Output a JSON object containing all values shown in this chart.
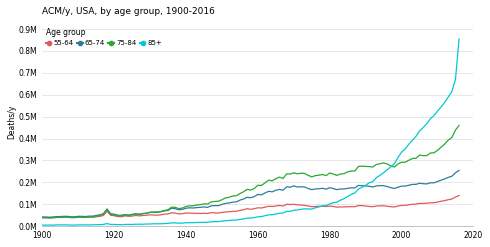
{
  "title": "ACM/y, USA, by age group, 1900-2016",
  "ylabel": "Deaths/y",
  "legend_title": "Age group",
  "legend_entries": [
    "55-64",
    "65-74",
    "75-84",
    "85+"
  ],
  "colors": {
    "55-64": "#e05a5a",
    "65-74": "#2e7d9e",
    "75-84": "#2ca830",
    "85+": "#00c8d4"
  },
  "yticks": [
    0.0,
    0.1,
    0.2,
    0.3,
    0.4,
    0.5,
    0.6,
    0.7,
    0.8,
    0.9
  ],
  "ytick_labels": [
    "0.0M",
    "0.1M",
    "0.2M",
    "0.3M",
    "0.4M",
    "0.5M",
    "0.6M",
    "0.7M",
    "0.8M",
    "0.9M"
  ],
  "xlim": [
    1900,
    2020
  ],
  "ylim": [
    0,
    0.95
  ],
  "data": {
    "years": [
      1900,
      1901,
      1902,
      1903,
      1904,
      1905,
      1906,
      1907,
      1908,
      1909,
      1910,
      1911,
      1912,
      1913,
      1914,
      1915,
      1916,
      1917,
      1918,
      1919,
      1920,
      1921,
      1922,
      1923,
      1924,
      1925,
      1926,
      1927,
      1928,
      1929,
      1930,
      1931,
      1932,
      1933,
      1934,
      1935,
      1936,
      1937,
      1938,
      1939,
      1940,
      1941,
      1942,
      1943,
      1944,
      1945,
      1946,
      1947,
      1948,
      1949,
      1950,
      1951,
      1952,
      1953,
      1954,
      1955,
      1956,
      1957,
      1958,
      1959,
      1960,
      1961,
      1962,
      1963,
      1964,
      1965,
      1966,
      1967,
      1968,
      1969,
      1970,
      1971,
      1972,
      1973,
      1974,
      1975,
      1976,
      1977,
      1978,
      1979,
      1980,
      1981,
      1982,
      1983,
      1984,
      1985,
      1986,
      1987,
      1988,
      1989,
      1990,
      1991,
      1992,
      1993,
      1994,
      1995,
      1996,
      1997,
      1998,
      1999,
      2000,
      2001,
      2002,
      2003,
      2004,
      2005,
      2006,
      2007,
      2008,
      2009,
      2010,
      2011,
      2012,
      2013,
      2014,
      2015,
      2016
    ],
    "55_64": [
      0.04,
      0.04,
      0.039,
      0.04,
      0.041,
      0.041,
      0.042,
      0.042,
      0.04,
      0.04,
      0.042,
      0.042,
      0.041,
      0.042,
      0.041,
      0.043,
      0.045,
      0.049,
      0.068,
      0.05,
      0.048,
      0.044,
      0.043,
      0.047,
      0.045,
      0.046,
      0.049,
      0.047,
      0.049,
      0.05,
      0.052,
      0.051,
      0.05,
      0.052,
      0.055,
      0.056,
      0.061,
      0.06,
      0.056,
      0.057,
      0.06,
      0.06,
      0.059,
      0.059,
      0.058,
      0.059,
      0.058,
      0.062,
      0.061,
      0.06,
      0.063,
      0.065,
      0.066,
      0.068,
      0.068,
      0.072,
      0.075,
      0.08,
      0.077,
      0.08,
      0.084,
      0.083,
      0.087,
      0.091,
      0.09,
      0.092,
      0.095,
      0.092,
      0.1,
      0.099,
      0.1,
      0.097,
      0.097,
      0.095,
      0.092,
      0.089,
      0.09,
      0.091,
      0.091,
      0.09,
      0.092,
      0.09,
      0.087,
      0.088,
      0.088,
      0.089,
      0.089,
      0.089,
      0.094,
      0.094,
      0.092,
      0.09,
      0.089,
      0.092,
      0.093,
      0.093,
      0.091,
      0.089,
      0.088,
      0.092,
      0.095,
      0.095,
      0.098,
      0.1,
      0.101,
      0.104,
      0.104,
      0.105,
      0.107,
      0.107,
      0.11,
      0.114,
      0.117,
      0.121,
      0.124,
      0.133,
      0.14
    ],
    "65_74": [
      0.042,
      0.042,
      0.041,
      0.042,
      0.044,
      0.044,
      0.045,
      0.045,
      0.043,
      0.043,
      0.045,
      0.045,
      0.044,
      0.046,
      0.046,
      0.049,
      0.052,
      0.057,
      0.079,
      0.057,
      0.055,
      0.05,
      0.05,
      0.053,
      0.051,
      0.054,
      0.057,
      0.055,
      0.058,
      0.059,
      0.063,
      0.063,
      0.063,
      0.066,
      0.07,
      0.072,
      0.082,
      0.08,
      0.075,
      0.077,
      0.082,
      0.084,
      0.083,
      0.085,
      0.086,
      0.088,
      0.086,
      0.093,
      0.094,
      0.094,
      0.099,
      0.104,
      0.106,
      0.11,
      0.111,
      0.119,
      0.124,
      0.132,
      0.13,
      0.135,
      0.145,
      0.143,
      0.152,
      0.159,
      0.157,
      0.164,
      0.168,
      0.164,
      0.18,
      0.178,
      0.184,
      0.179,
      0.18,
      0.179,
      0.172,
      0.167,
      0.17,
      0.171,
      0.173,
      0.169,
      0.176,
      0.172,
      0.167,
      0.17,
      0.17,
      0.173,
      0.175,
      0.175,
      0.186,
      0.185,
      0.184,
      0.182,
      0.179,
      0.184,
      0.185,
      0.185,
      0.181,
      0.176,
      0.172,
      0.178,
      0.183,
      0.183,
      0.187,
      0.191,
      0.191,
      0.196,
      0.194,
      0.193,
      0.198,
      0.198,
      0.204,
      0.21,
      0.216,
      0.223,
      0.228,
      0.244,
      0.255
    ],
    "75_84": [
      0.038,
      0.038,
      0.037,
      0.038,
      0.04,
      0.04,
      0.041,
      0.041,
      0.039,
      0.039,
      0.041,
      0.041,
      0.04,
      0.042,
      0.042,
      0.046,
      0.049,
      0.055,
      0.076,
      0.054,
      0.051,
      0.047,
      0.047,
      0.051,
      0.049,
      0.052,
      0.055,
      0.053,
      0.057,
      0.059,
      0.064,
      0.065,
      0.065,
      0.067,
      0.072,
      0.075,
      0.087,
      0.086,
      0.08,
      0.083,
      0.09,
      0.093,
      0.093,
      0.097,
      0.098,
      0.102,
      0.101,
      0.111,
      0.113,
      0.114,
      0.121,
      0.129,
      0.132,
      0.138,
      0.139,
      0.149,
      0.157,
      0.168,
      0.165,
      0.172,
      0.187,
      0.186,
      0.198,
      0.21,
      0.207,
      0.217,
      0.224,
      0.218,
      0.239,
      0.238,
      0.244,
      0.239,
      0.242,
      0.241,
      0.232,
      0.225,
      0.231,
      0.233,
      0.236,
      0.231,
      0.243,
      0.238,
      0.232,
      0.238,
      0.24,
      0.248,
      0.252,
      0.252,
      0.273,
      0.274,
      0.273,
      0.272,
      0.27,
      0.282,
      0.285,
      0.289,
      0.284,
      0.275,
      0.27,
      0.284,
      0.292,
      0.292,
      0.301,
      0.309,
      0.31,
      0.325,
      0.322,
      0.322,
      0.334,
      0.335,
      0.346,
      0.361,
      0.375,
      0.393,
      0.405,
      0.439,
      0.46
    ],
    "85plus": [
      0.005,
      0.005,
      0.005,
      0.005,
      0.006,
      0.006,
      0.006,
      0.006,
      0.005,
      0.005,
      0.006,
      0.006,
      0.006,
      0.006,
      0.006,
      0.007,
      0.007,
      0.008,
      0.012,
      0.008,
      0.008,
      0.007,
      0.007,
      0.008,
      0.008,
      0.008,
      0.009,
      0.009,
      0.009,
      0.01,
      0.01,
      0.011,
      0.011,
      0.011,
      0.012,
      0.013,
      0.015,
      0.015,
      0.014,
      0.014,
      0.016,
      0.016,
      0.016,
      0.017,
      0.017,
      0.018,
      0.018,
      0.02,
      0.021,
      0.021,
      0.023,
      0.025,
      0.026,
      0.028,
      0.028,
      0.031,
      0.033,
      0.037,
      0.037,
      0.039,
      0.043,
      0.044,
      0.048,
      0.052,
      0.052,
      0.056,
      0.059,
      0.06,
      0.068,
      0.068,
      0.073,
      0.074,
      0.077,
      0.079,
      0.079,
      0.078,
      0.084,
      0.088,
      0.093,
      0.094,
      0.102,
      0.107,
      0.11,
      0.119,
      0.126,
      0.136,
      0.145,
      0.152,
      0.17,
      0.178,
      0.187,
      0.198,
      0.204,
      0.222,
      0.232,
      0.244,
      0.258,
      0.271,
      0.285,
      0.314,
      0.338,
      0.352,
      0.374,
      0.392,
      0.41,
      0.435,
      0.45,
      0.468,
      0.49,
      0.505,
      0.525,
      0.545,
      0.565,
      0.59,
      0.615,
      0.67,
      0.855
    ]
  }
}
